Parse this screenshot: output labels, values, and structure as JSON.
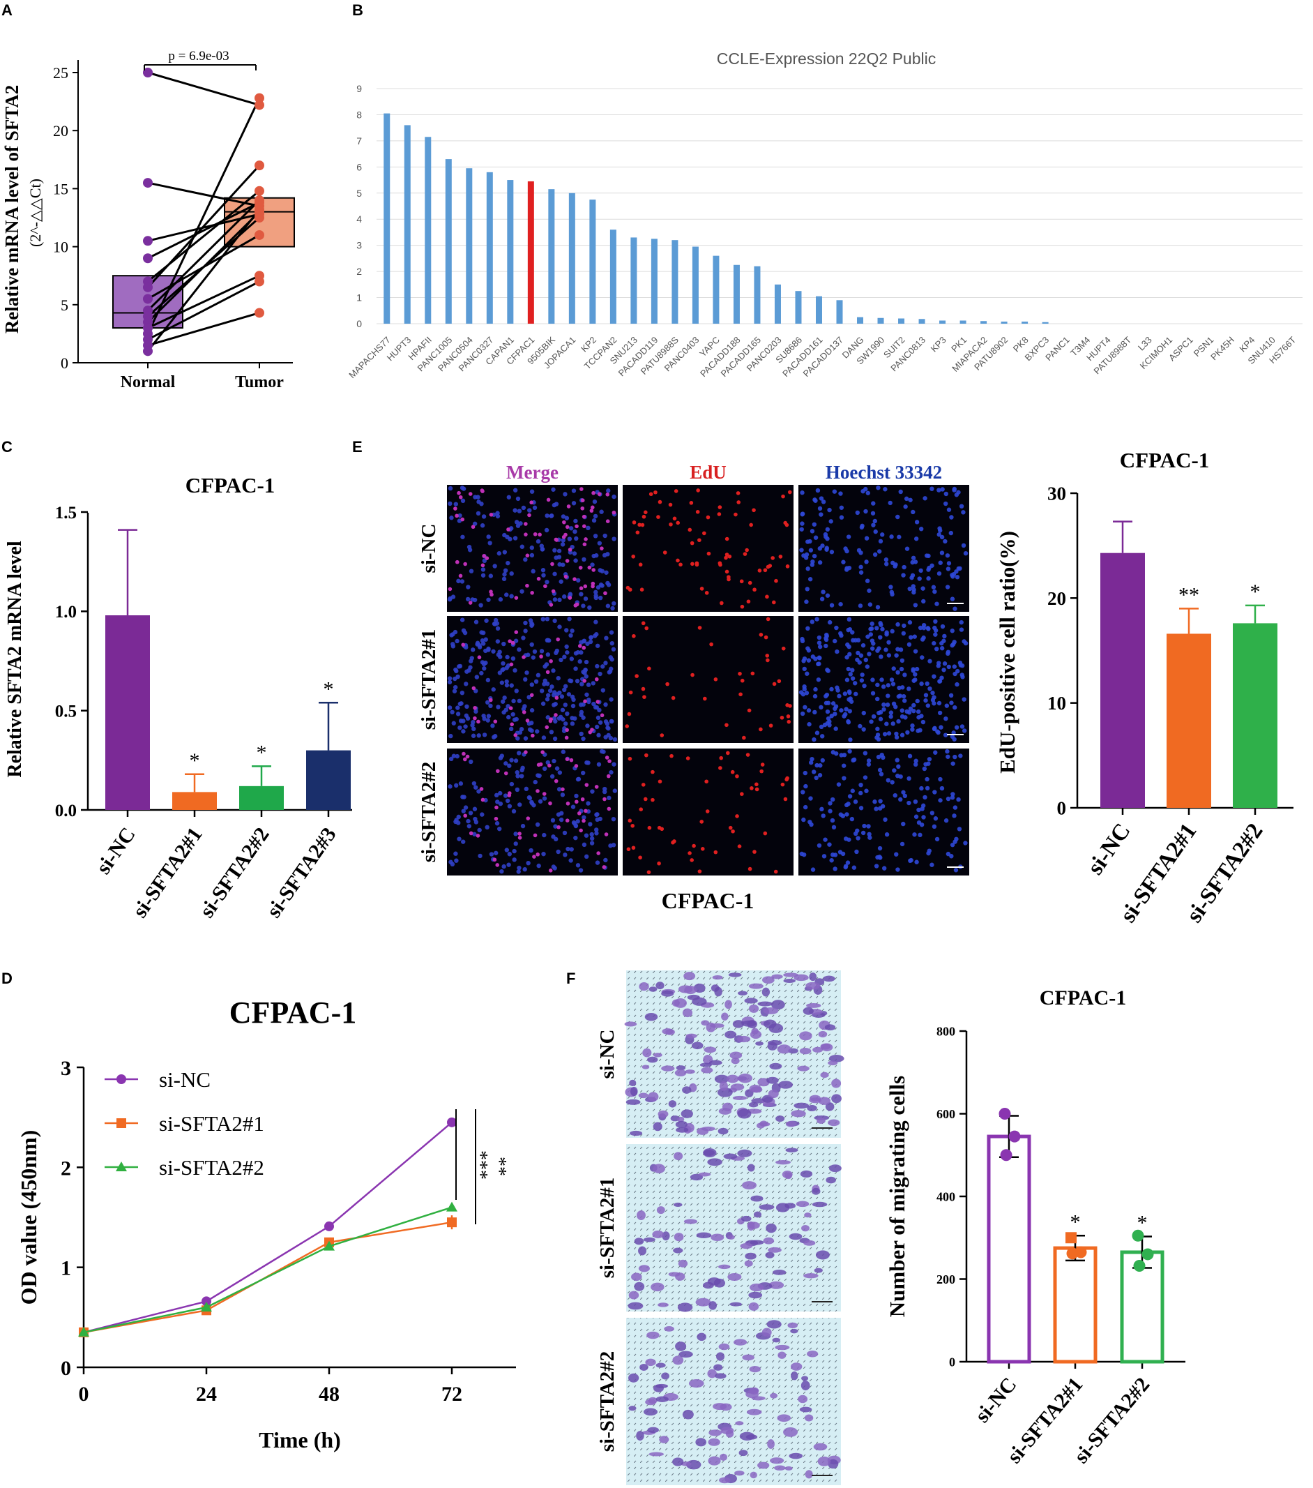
{
  "panels": {
    "A": {
      "letter": "A",
      "ylabel": "Relative mRNA level of SFTA2",
      "ylabel2": "(2^-△△Ct)",
      "pvalue": "p = 6.9e-03",
      "groups": [
        "Normal",
        "Tumor"
      ],
      "ylim": [
        0,
        25
      ],
      "yticks": [
        "0",
        "5",
        "10",
        "15",
        "20",
        "25"
      ],
      "pairs": [
        [
          25.0,
          22.2
        ],
        [
          15.5,
          13.5
        ],
        [
          10.5,
          12.8
        ],
        [
          9.0,
          13.8
        ],
        [
          7.0,
          14.8
        ],
        [
          6.5,
          17.0
        ],
        [
          5.5,
          11.0
        ],
        [
          4.5,
          14.0
        ],
        [
          4.0,
          12.5
        ],
        [
          3.5,
          13.0
        ],
        [
          3.0,
          7.5
        ],
        [
          2.5,
          22.8
        ],
        [
          2.0,
          7.0
        ],
        [
          1.5,
          4.3
        ],
        [
          1.0,
          13.2
        ]
      ],
      "boxes": [
        {
          "name": "Normal",
          "q1": 3.0,
          "median": 4.3,
          "q3": 7.5,
          "color": "#a06cc0",
          "dot": "#7a2f9e"
        },
        {
          "name": "Tumor",
          "q1": 10.0,
          "median": 13.0,
          "q3": 14.2,
          "color": "#f0a080",
          "dot": "#e05a40"
        }
      ]
    },
    "B": {
      "letter": "B",
      "title": "CCLE-Expression 22Q2 Public",
      "ylim": [
        0,
        9
      ],
      "yticks": [
        "0",
        "1",
        "2",
        "3",
        "4",
        "5",
        "6",
        "7",
        "8",
        "9"
      ],
      "highlight": "CFPAC1",
      "bar_color": "#5b9bd5",
      "highlight_color": "#e02020",
      "categories": [
        "MAPACHS77",
        "HUPT3",
        "HPAFII",
        "PANC1005",
        "PANC0504",
        "PANC0327",
        "CAPAN1",
        "CFPAC1",
        "9505BIK",
        "JOPACA1",
        "KP2",
        "TCCPAN2",
        "SNU213",
        "PACADD119",
        "PATU8988S",
        "PANC0403",
        "YAPC",
        "PACADD188",
        "PACADD165",
        "PANC0203",
        "SU8686",
        "PACADD161",
        "PACADD137",
        "DANG",
        "SW1990",
        "SUIT2",
        "PANC0813",
        "KP3",
        "PK1",
        "MIAPACA2",
        "PATU8902",
        "PK8",
        "BXPC3",
        "PANC1",
        "T3M4",
        "HUPT4",
        "PATU8988T",
        "L33",
        "KCIMOH1",
        "ASPC1",
        "PSN1",
        "PK45H",
        "KP4",
        "SNU410",
        "HS766T"
      ],
      "values": [
        8.05,
        7.6,
        7.15,
        6.3,
        5.95,
        5.8,
        5.5,
        5.45,
        5.15,
        5.0,
        4.75,
        3.6,
        3.3,
        3.25,
        3.2,
        2.95,
        2.6,
        2.25,
        2.2,
        1.5,
        1.25,
        1.05,
        0.9,
        0.25,
        0.22,
        0.2,
        0.18,
        0.12,
        0.12,
        0.1,
        0.08,
        0.08,
        0.06,
        0.0,
        0.0,
        0.0,
        0.0,
        0.0,
        0.0,
        0.0,
        0.0,
        0.0,
        0.0,
        0.0,
        0.0
      ]
    },
    "C": {
      "letter": "C",
      "title": "CFPAC-1",
      "ylabel": "Relative SFTA2 mRNA level",
      "ylim": [
        0,
        1.5
      ],
      "yticks": [
        "0.0",
        "0.5",
        "1.0",
        "1.5"
      ],
      "categories": [
        "si-NC",
        "si-SFTA2#1",
        "si-SFTA2#2",
        "si-SFTA2#3"
      ],
      "values": [
        0.98,
        0.09,
        0.12,
        0.3
      ],
      "errors": [
        0.43,
        0.09,
        0.1,
        0.24
      ],
      "colors": [
        "#7b2a96",
        "#f06a22",
        "#1fa84a",
        "#1a2f6b"
      ],
      "sig": [
        "",
        "*",
        "*",
        "*"
      ]
    },
    "D": {
      "letter": "D",
      "title": "CFPAC-1",
      "xlabel": "Time (h)",
      "ylabel": "OD value (450nm)",
      "x": [
        0,
        24,
        48,
        72
      ],
      "xticks": [
        "0",
        "24",
        "48",
        "72"
      ],
      "ylim": [
        0,
        3
      ],
      "yticks": [
        "0",
        "1",
        "2",
        "3"
      ],
      "series": [
        {
          "name": "si-NC",
          "values": [
            0.35,
            0.66,
            1.41,
            2.45
          ],
          "color": "#8a35b0",
          "marker": "circle"
        },
        {
          "name": "si-SFTA2#1",
          "values": [
            0.35,
            0.57,
            1.25,
            1.45
          ],
          "color": "#f06a22",
          "marker": "square"
        },
        {
          "name": "si-SFTA2#2",
          "values": [
            0.35,
            0.6,
            1.21,
            1.6
          ],
          "color": "#30b040",
          "marker": "triangle"
        }
      ],
      "sig1": "***",
      "sig2": "**"
    },
    "E": {
      "letter": "E",
      "col_labels": [
        "Merge",
        "EdU",
        "Hoechst 33342"
      ],
      "col_colors": [
        "#a83aa8",
        "#d82020",
        "#1a3aa8"
      ],
      "row_labels": [
        "si-NC",
        "si-SFTA2#1",
        "si-SFTA2#2"
      ],
      "caption": "CFPAC-1",
      "scale": "50μm"
    },
    "E_chart": {
      "title": "CFPAC-1",
      "ylabel": "EdU-positive cell ratio(%)",
      "ylim": [
        0,
        30
      ],
      "yticks": [
        "0",
        "10",
        "20",
        "30"
      ],
      "categories": [
        "si-NC",
        "si-SFTA2#1",
        "si-SFTA2#2"
      ],
      "values": [
        24.3,
        16.6,
        17.6
      ],
      "errors": [
        3.0,
        2.4,
        1.7
      ],
      "colors": [
        "#7b2a96",
        "#f06a22",
        "#2fb04a"
      ],
      "sig": [
        "",
        "**",
        "*"
      ]
    },
    "F": {
      "letter": "F",
      "row_labels": [
        "si-NC",
        "si-SFTA2#1",
        "si-SFTA2#2"
      ],
      "scale": "50μm"
    },
    "F_chart": {
      "title": "CFPAC-1",
      "ylabel": "Number of migrating cells",
      "ylim": [
        0,
        800
      ],
      "yticks": [
        "0",
        "200",
        "400",
        "600",
        "800"
      ],
      "categories": [
        "si-NC",
        "si-SFTA2#1",
        "si-SFTA2#2"
      ],
      "values": [
        545,
        275,
        265
      ],
      "errors": [
        50,
        30,
        38
      ],
      "points": [
        [
          600,
          545,
          500
        ],
        [
          300,
          265,
          262
        ],
        [
          305,
          260,
          232
        ]
      ],
      "colors": [
        "#8a35b0",
        "#f06a22",
        "#30b050"
      ],
      "sig": [
        "",
        "*",
        "*"
      ]
    }
  },
  "chart_data": [
    {
      "type": "scatter",
      "title": "",
      "xlabel": "",
      "ylabel": "Relative mRNA level of SFTA2 (2^-△△Ct)",
      "categories": [
        "Normal",
        "Tumor"
      ],
      "ylim": [
        0,
        25
      ],
      "annotation": "p = 6.9e-03"
    },
    {
      "type": "bar",
      "title": "CCLE-Expression 22Q2 Public",
      "ylim": [
        0,
        9
      ]
    },
    {
      "type": "bar",
      "title": "CFPAC-1",
      "ylabel": "Relative SFTA2 mRNA level",
      "ylim": [
        0,
        1.5
      ]
    },
    {
      "type": "line",
      "title": "CFPAC-1",
      "xlabel": "Time (h)",
      "ylabel": "OD value (450nm)",
      "ylim": [
        0,
        3
      ]
    },
    {
      "type": "bar",
      "title": "CFPAC-1",
      "ylabel": "EdU-positive cell ratio(%)",
      "ylim": [
        0,
        30
      ]
    },
    {
      "type": "bar",
      "title": "CFPAC-1",
      "ylabel": "Number of migrating cells",
      "ylim": [
        0,
        800
      ]
    }
  ]
}
